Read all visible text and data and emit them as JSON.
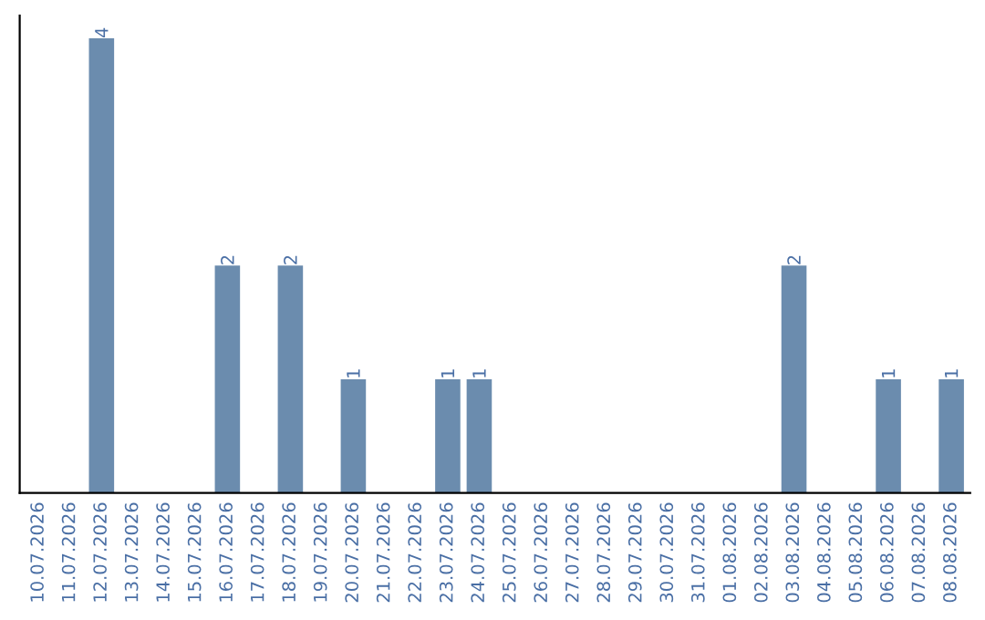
{
  "chart_data": {
    "type": "bar",
    "categories": [
      "10.07.2026",
      "11.07.2026",
      "12.07.2026",
      "13.07.2026",
      "14.07.2026",
      "15.07.2026",
      "16.07.2026",
      "17.07.2026",
      "18.07.2026",
      "19.07.2026",
      "20.07.2026",
      "21.07.2026",
      "22.07.2026",
      "23.07.2026",
      "24.07.2026",
      "25.07.2026",
      "26.07.2026",
      "27.07.2026",
      "28.07.2026",
      "29.07.2026",
      "30.07.2026",
      "31.07.2026",
      "01.08.2026",
      "02.08.2026",
      "03.08.2026",
      "04.08.2026",
      "05.08.2026",
      "06.08.2026",
      "07.08.2026",
      "08.08.2026"
    ],
    "values": [
      0,
      0,
      4,
      0,
      0,
      0,
      2,
      0,
      2,
      0,
      1,
      0,
      0,
      1,
      1,
      0,
      0,
      0,
      0,
      0,
      0,
      0,
      0,
      0,
      2,
      0,
      0,
      1,
      0,
      1
    ],
    "value_labels": [
      null,
      null,
      "4",
      null,
      null,
      null,
      "2",
      null,
      "2",
      null,
      "1",
      null,
      null,
      "1",
      "1",
      null,
      null,
      null,
      null,
      null,
      null,
      null,
      null,
      null,
      "2",
      null,
      null,
      "1",
      null,
      "1"
    ],
    "color": "#6b8cae",
    "tick_labels": "x",
    "grid": false,
    "legend": false
  }
}
